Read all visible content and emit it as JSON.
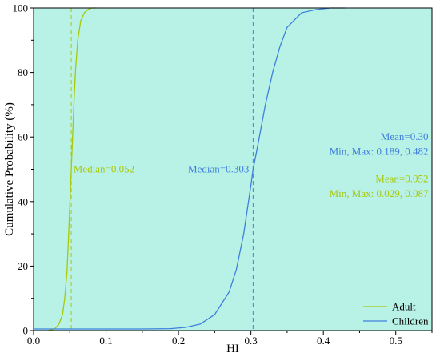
{
  "chart_data": {
    "type": "line",
    "xlabel": "HI",
    "ylabel": "Cumulative Probability (%)",
    "xlim": [
      0.0,
      0.55
    ],
    "ylim": [
      0,
      100
    ],
    "x_ticks": [
      0.0,
      0.1,
      0.2,
      0.3,
      0.4,
      0.5
    ],
    "x_tick_labels": [
      "0.0",
      "0.1",
      "0.2",
      "0.3",
      "0.4",
      "0.5"
    ],
    "y_ticks": [
      0,
      20,
      40,
      60,
      80,
      100
    ],
    "y_tick_labels": [
      "0",
      "20",
      "40",
      "60",
      "80",
      "100"
    ],
    "grid": false,
    "legend_position": "bottom-right",
    "background_color": "#b8f2e6",
    "series": [
      {
        "name": "Adult",
        "color": "#a8c80a",
        "x": [
          0.02,
          0.029,
          0.035,
          0.04,
          0.043,
          0.046,
          0.048,
          0.05,
          0.052,
          0.054,
          0.056,
          0.058,
          0.061,
          0.065,
          0.07,
          0.075,
          0.08,
          0.087
        ],
        "y": [
          0,
          0.5,
          2,
          5,
          10,
          18,
          28,
          39,
          50,
          61,
          72,
          81,
          90,
          96,
          98.5,
          99.5,
          100,
          100
        ]
      },
      {
        "name": "Children",
        "color": "#3f7fdc",
        "x": [
          0.0,
          0.15,
          0.189,
          0.21,
          0.23,
          0.25,
          0.27,
          0.28,
          0.29,
          0.3,
          0.303,
          0.31,
          0.32,
          0.33,
          0.34,
          0.35,
          0.37,
          0.39,
          0.41,
          0.43
        ],
        "y": [
          0.5,
          0.5,
          0.6,
          1,
          2,
          5,
          12,
          19,
          30,
          45,
          50,
          58,
          70,
          80,
          88,
          94,
          98.5,
          99.5,
          100,
          100
        ]
      }
    ],
    "annotations": [
      {
        "id": "adult-median",
        "text": "Median=0.052",
        "color": "#a8c80a",
        "x": 0.055,
        "y": 49
      },
      {
        "id": "children-median",
        "text": "Median=0.303",
        "color": "#3f7fdc",
        "x": 0.305,
        "y": 49
      },
      {
        "id": "children-mean",
        "text": "Mean=0.30",
        "color": "#3f7fdc",
        "x": 0.545,
        "y": 59
      },
      {
        "id": "children-minmax",
        "text": "Min, Max: 0.189, 0.482",
        "color": "#3f7fdc",
        "x": 0.545,
        "y": 54.5
      },
      {
        "id": "adult-mean",
        "text": "Mean=0.052",
        "color": "#a8c80a",
        "x": 0.545,
        "y": 46
      },
      {
        "id": "adult-minmax",
        "text": "Min, Max: 0.029, 0.087",
        "color": "#a8c80a",
        "x": 0.545,
        "y": 41.5
      }
    ],
    "medians": [
      {
        "series": "Adult",
        "x": 0.052,
        "color": "#a8c80a"
      },
      {
        "series": "Children",
        "x": 0.303,
        "color": "#3f7fdc"
      }
    ]
  }
}
